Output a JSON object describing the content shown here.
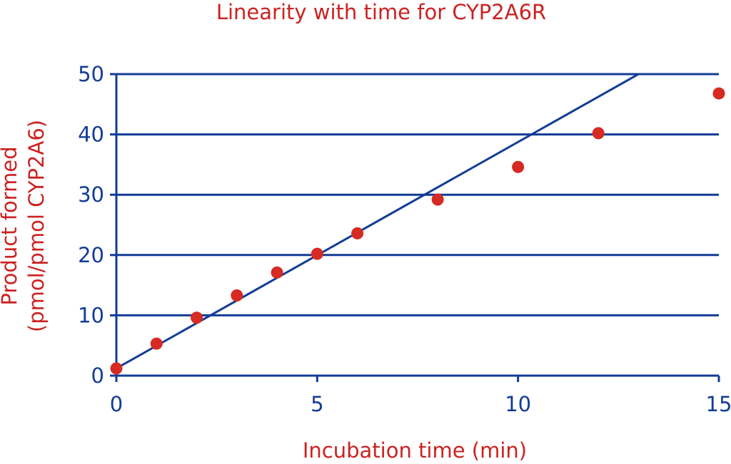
{
  "chart_data": {
    "type": "scatter",
    "title": "Linearity with time for CYP2A6R",
    "xlabel": "Incubation time (min)",
    "ylabel_lines": [
      "Product formed",
      "(pmol/pmol CYP2A6)"
    ],
    "xlim": [
      0,
      15
    ],
    "ylim": [
      0,
      50
    ],
    "xticks": [
      0,
      5,
      10,
      15
    ],
    "yticks": [
      0,
      10,
      20,
      30,
      40,
      50
    ],
    "grid": "horizontal",
    "series": [
      {
        "kind": "scatter",
        "x": [
          0,
          1,
          2,
          3,
          4,
          5,
          6,
          8,
          10,
          12,
          15
        ],
        "y": [
          1.2,
          5.3,
          9.6,
          13.3,
          17.1,
          20.2,
          23.6,
          29.2,
          34.6,
          40.2,
          46.8
        ]
      },
      {
        "kind": "line",
        "x": [
          0,
          13
        ],
        "y": [
          1.2,
          50
        ]
      }
    ],
    "colors": {
      "text": "#cc2222",
      "axis": "#123c96",
      "point": "#d62a22",
      "line": "#123c96"
    }
  }
}
